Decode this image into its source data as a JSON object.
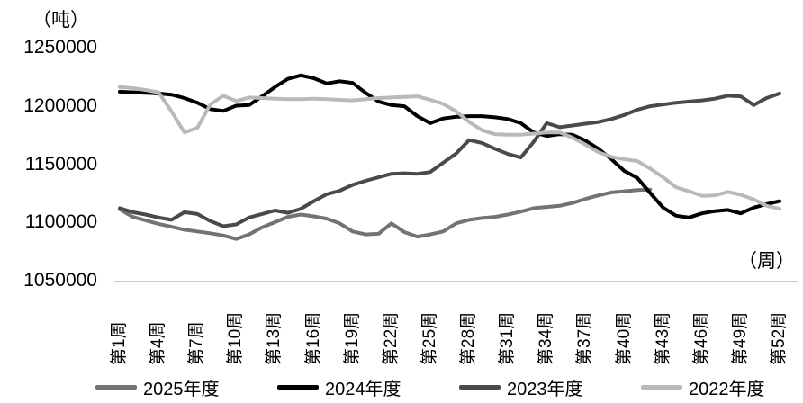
{
  "chart_data": {
    "type": "line",
    "title": "",
    "y_unit_label": "（吨）",
    "x_unit_label": "（周）",
    "ylim": [
      1050000,
      1250000
    ],
    "y_ticks": [
      1050000,
      1100000,
      1150000,
      1200000,
      1250000
    ],
    "y_tick_labels": [
      "1050000",
      "1100000",
      "1150000",
      "1200000",
      "1250000"
    ],
    "x_weeks": 52,
    "x_tick_step": 3,
    "x_tick_labels": [
      "第1周",
      "第4周",
      "第7周",
      "第10周",
      "第13周",
      "第16周",
      "第19周",
      "第22周",
      "第25周",
      "第28周",
      "第31周",
      "第34周",
      "第37周",
      "第40周",
      "第43周",
      "第46周",
      "第49周",
      "第52周"
    ],
    "grid": "off",
    "legend_position": "bottom",
    "axis_line_color": "#aaaaaa",
    "series": [
      {
        "name": "2025年度",
        "color": "#737373",
        "start_week": 1,
        "values": [
          1112000,
          1105500,
          1102500,
          1099500,
          1097000,
          1094500,
          1093000,
          1091500,
          1089500,
          1086500,
          1090500,
          1096500,
          1101000,
          1105500,
          1107500,
          1106000,
          1104000,
          1100000,
          1093000,
          1090500,
          1091000,
          1100000,
          1092500,
          1088500,
          1090500,
          1093000,
          1100000,
          1103000,
          1104500,
          1105500,
          1107500,
          1110000,
          1113000,
          1114000,
          1115000,
          1117500,
          1121000,
          1124000,
          1126500,
          1127500,
          1128500,
          1129000
        ]
      },
      {
        "name": "2024年度",
        "color": "#000000",
        "start_week": 1,
        "values": [
          1213000,
          1212500,
          1212000,
          1211500,
          1210500,
          1207500,
          1203500,
          1198000,
          1196500,
          1201000,
          1201500,
          1209000,
          1217000,
          1224000,
          1227000,
          1224500,
          1220000,
          1222000,
          1220500,
          1212000,
          1204500,
          1201500,
          1200500,
          1192000,
          1186000,
          1190000,
          1191500,
          1192000,
          1192000,
          1191000,
          1189500,
          1186000,
          1178000,
          1175000,
          1176500,
          1176000,
          1171000,
          1164000,
          1155000,
          1145000,
          1139000,
          1126000,
          1113500,
          1106500,
          1105000,
          1108500,
          1110500,
          1111500,
          1108500,
          1113500,
          1116500,
          1119000
        ]
      },
      {
        "name": "2023年度",
        "color": "#4a4a4a",
        "start_week": 1,
        "values": [
          1113000,
          1109500,
          1107500,
          1105000,
          1103000,
          1109500,
          1108000,
          1102000,
          1097500,
          1099000,
          1105000,
          1108000,
          1111000,
          1109000,
          1112500,
          1119000,
          1125000,
          1128000,
          1133000,
          1136500,
          1139500,
          1142500,
          1143000,
          1142500,
          1144000,
          1152000,
          1160000,
          1171500,
          1169000,
          1164000,
          1159500,
          1156500,
          1170000,
          1186000,
          1182500,
          1184000,
          1185500,
          1187000,
          1189500,
          1193000,
          1197500,
          1200500,
          1202000,
          1203500,
          1204500,
          1205500,
          1207000,
          1209500,
          1209000,
          1201500,
          1207500,
          1211500
        ]
      },
      {
        "name": "2022年度",
        "color": "#b9b9b9",
        "start_week": 1,
        "values": [
          1217000,
          1216000,
          1214500,
          1212500,
          1196000,
          1178000,
          1182000,
          1202000,
          1209500,
          1205000,
          1208000,
          1207500,
          1207000,
          1206500,
          1206500,
          1207000,
          1206500,
          1206000,
          1205500,
          1206500,
          1207500,
          1208000,
          1208500,
          1209000,
          1206000,
          1202500,
          1196000,
          1187000,
          1180000,
          1176500,
          1176000,
          1176000,
          1177000,
          1178000,
          1178000,
          1173500,
          1167500,
          1161000,
          1157000,
          1155000,
          1153500,
          1147000,
          1139500,
          1131000,
          1127500,
          1123500,
          1124000,
          1127000,
          1124500,
          1120500,
          1115000,
          1112500
        ]
      }
    ]
  }
}
